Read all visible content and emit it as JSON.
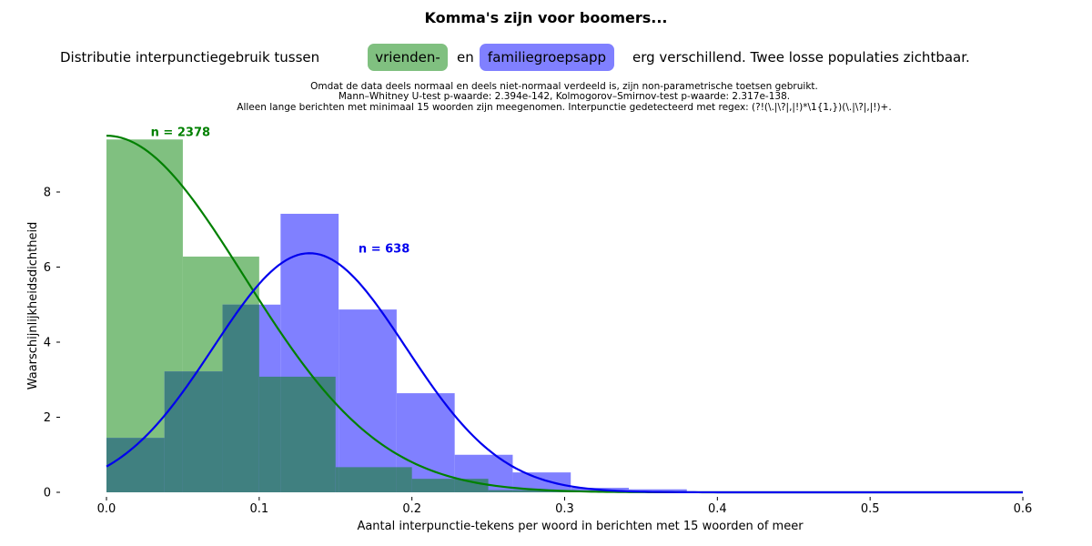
{
  "title": "Komma's zijn voor boomers...",
  "subtitle": {
    "part1": "Distributie interpunctiegebruik tussen",
    "group1": "vrienden-",
    "connector": "en",
    "group2": "familiegroepsapp",
    "part2": "erg verschillend. Twee losse populaties zichtbaar."
  },
  "notes": [
    "Omdat de data deels normaal en deels niet-normaal verdeeld is, zijn non-parametrische toetsen gebruikt.",
    "Mann–Whitney U-test p-waarde: 2.394e-142, Kolmogorov–Smirnov-test p-waarde: 2.317e-138.",
    "Alleen lange berichten met minimaal 15 woorden zijn meegenomen. Interpunctie gedetecteerd met regex: (?!(\\.|\\?|,|!)*\\1{1,})(\\.|\\?|,|!)+."
  ],
  "colors": {
    "green_fill": "#80c080",
    "blue_fill": "#8080ff",
    "overlap_fill": "#408080",
    "green_line": "#008000",
    "blue_line": "#0000ee"
  },
  "chart_data": {
    "type": "bar",
    "xlabel": "Aantal interpunctie-tekens per woord in berichten met 15 woorden of meer",
    "ylabel": "Waarschijnlijkheidsdichtheid",
    "xlim": [
      0.0,
      0.6
    ],
    "ylim": [
      0,
      9.5
    ],
    "xticks": [
      "0.0",
      "0.1",
      "0.2",
      "0.3",
      "0.4",
      "0.5",
      "0.6"
    ],
    "yticks": [
      "0",
      "2",
      "4",
      "6",
      "8"
    ],
    "series": [
      {
        "label": "n = 2378",
        "color": "#80c080",
        "bins": [
          {
            "x0": 0.0,
            "x1": 0.05,
            "density": 9.4
          },
          {
            "x0": 0.05,
            "x1": 0.1,
            "density": 6.28
          },
          {
            "x0": 0.1,
            "x1": 0.15,
            "density": 3.08
          },
          {
            "x0": 0.15,
            "x1": 0.2,
            "density": 0.67
          },
          {
            "x0": 0.2,
            "x1": 0.25,
            "density": 0.36
          },
          {
            "x0": 0.25,
            "x1": 0.3,
            "density": 0.06
          },
          {
            "x0": 0.3,
            "x1": 0.35,
            "density": 0.02
          },
          {
            "x0": 0.35,
            "x1": 0.4,
            "density": 0.0
          },
          {
            "x0": 0.4,
            "x1": 0.45,
            "density": 0.0
          }
        ],
        "kde": {
          "type": "normal",
          "mean": 0.0,
          "sd": 0.09,
          "peak": 9.5,
          "line_color": "#008000"
        }
      },
      {
        "label": "n = 638",
        "color": "#8080ff",
        "bins": [
          {
            "x0": 0.0,
            "x1": 0.038,
            "density": 1.45
          },
          {
            "x0": 0.038,
            "x1": 0.076,
            "density": 3.22
          },
          {
            "x0": 0.076,
            "x1": 0.114,
            "density": 5.0
          },
          {
            "x0": 0.114,
            "x1": 0.152,
            "density": 7.42
          },
          {
            "x0": 0.152,
            "x1": 0.19,
            "density": 4.87
          },
          {
            "x0": 0.19,
            "x1": 0.228,
            "density": 2.64
          },
          {
            "x0": 0.228,
            "x1": 0.266,
            "density": 1.0
          },
          {
            "x0": 0.266,
            "x1": 0.304,
            "density": 0.53
          },
          {
            "x0": 0.304,
            "x1": 0.342,
            "density": 0.12
          },
          {
            "x0": 0.342,
            "x1": 0.38,
            "density": 0.08
          }
        ],
        "kde": {
          "type": "normal",
          "mean": 0.133,
          "sd": 0.063,
          "peak": 6.37,
          "line_color": "#0000ee"
        }
      }
    ],
    "annotations": [
      {
        "text": "n = 2378",
        "x": 0.029,
        "y": 9.5,
        "color": "#008000"
      },
      {
        "text": "n = 638",
        "x": 0.165,
        "y": 6.4,
        "color": "#0000ee"
      }
    ],
    "grid": false,
    "legend": "none"
  }
}
